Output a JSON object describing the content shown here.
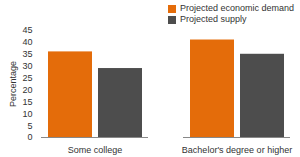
{
  "chart_data": {
    "type": "bar",
    "categories": [
      "Some college",
      "Bachelor's degree or higher"
    ],
    "series": [
      {
        "name": "Projected economic demand",
        "color": "#E46C0A",
        "values": [
          36,
          41
        ]
      },
      {
        "name": "Projected supply",
        "color": "#4D4D4D",
        "values": [
          29,
          35
        ]
      }
    ],
    "y_label": "Percentage",
    "ylim": [
      0,
      45
    ],
    "yticks": [
      0,
      5,
      10,
      15,
      20,
      25,
      30,
      35,
      40,
      45
    ],
    "grid": false,
    "legend": "top-right"
  }
}
